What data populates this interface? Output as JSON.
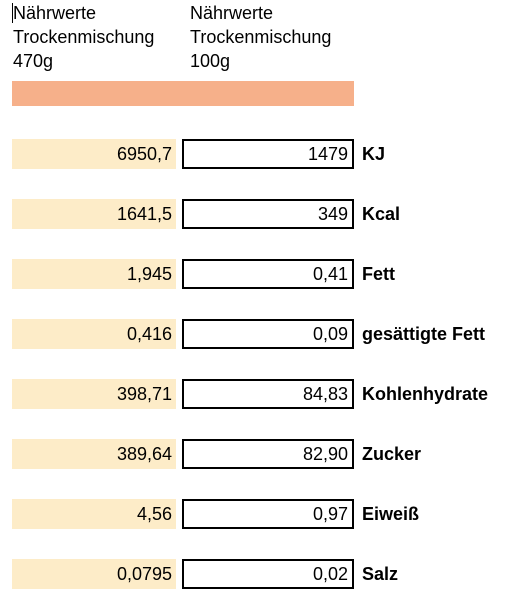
{
  "columns": [
    {
      "line1": "Nährwerte",
      "line2": "Trockenmischung",
      "line3": "470g"
    },
    {
      "line1": "Nährwerte",
      "line2": "Trockenmischung",
      "line3": "100g"
    }
  ],
  "colors": {
    "header_band": "#f6b08a",
    "cell_fill": "#fdecc8"
  },
  "rows": [
    {
      "total": "6950,7",
      "per100": "1479",
      "label": "KJ"
    },
    {
      "total": "1641,5",
      "per100": "349",
      "label": "Kcal"
    },
    {
      "total": "1,945",
      "per100": "0,41",
      "label": "Fett"
    },
    {
      "total": "0,416",
      "per100": "0,09",
      "label": "gesättigte Fett"
    },
    {
      "total": "398,71",
      "per100": "84,83",
      "label": "Kohlenhydrate"
    },
    {
      "total": "389,64",
      "per100": "82,90",
      "label": "Zucker"
    },
    {
      "total": "4,56",
      "per100": "0,97",
      "label": "Eiweiß"
    },
    {
      "total": "0,0795",
      "per100": "0,02",
      "label": "Salz"
    }
  ]
}
